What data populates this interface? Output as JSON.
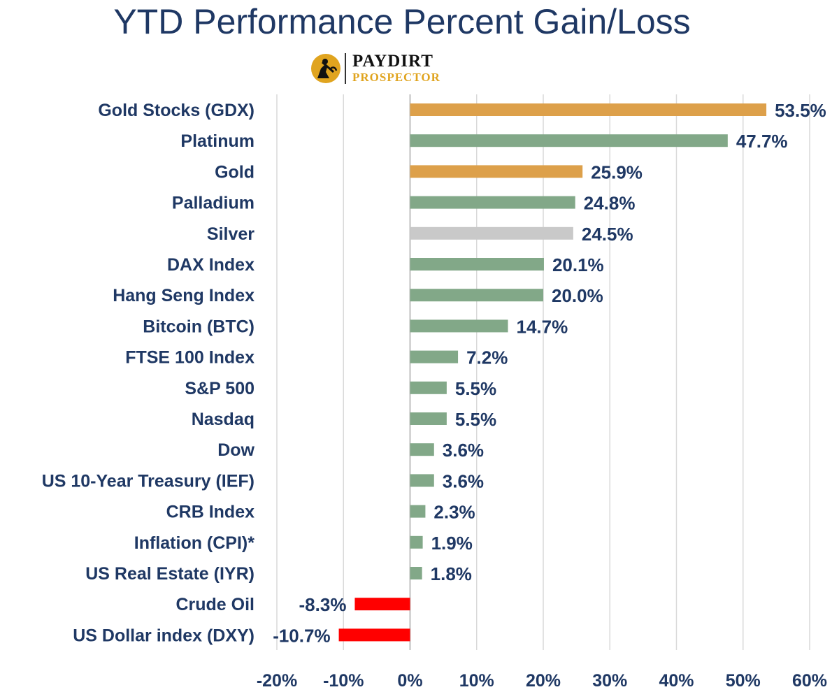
{
  "title": "YTD Performance Percent Gain/Loss",
  "logo": {
    "line1": "PAYDIRT",
    "line2": "PROSPECTOR",
    "icon": "miner-pickaxe-icon"
  },
  "colors": {
    "gold": "#DDA04A",
    "green": "#82A888",
    "silver": "#C9C9C9",
    "negative": "#FF0000",
    "text": "#1F3864",
    "grid": "#D9D9D9"
  },
  "chart_data": {
    "type": "bar",
    "orientation": "horizontal",
    "title": "YTD Performance Percent Gain/Loss",
    "xlim": [
      -20,
      60
    ],
    "x_ticks": [
      -20,
      -10,
      0,
      10,
      20,
      30,
      40,
      50,
      60
    ],
    "x_tick_labels": [
      "-20%",
      "-10%",
      "0%",
      "10%",
      "20%",
      "30%",
      "40%",
      "50%",
      "60%"
    ],
    "grid": "vertical",
    "categories": [
      "Gold Stocks (GDX)",
      "Platinum",
      "Gold",
      "Palladium",
      "Silver",
      "DAX Index",
      "Hang Seng Index",
      "Bitcoin (BTC)",
      "FTSE 100 Index",
      "S&P 500",
      "Nasdaq",
      "Dow",
      "US 10-Year Treasury (IEF)",
      "CRB Index",
      "Inflation (CPI)*",
      "US Real Estate (IYR)",
      "Crude Oil",
      "US Dollar index (DXY)"
    ],
    "values": [
      53.5,
      47.7,
      25.9,
      24.8,
      24.5,
      20.1,
      20.0,
      14.7,
      7.2,
      5.5,
      5.5,
      3.6,
      3.6,
      2.3,
      1.9,
      1.8,
      -8.3,
      -10.7
    ],
    "value_labels": [
      "53.5%",
      "47.7%",
      "25.9%",
      "24.8%",
      "24.5%",
      "20.1%",
      "20.0%",
      "14.7%",
      "7.2%",
      "5.5%",
      "5.5%",
      "3.6%",
      "3.6%",
      "2.3%",
      "1.9%",
      "1.8%",
      "-8.3%",
      "-10.7%"
    ],
    "bar_colors": [
      "gold",
      "green",
      "gold",
      "green",
      "silver",
      "green",
      "green",
      "green",
      "green",
      "green",
      "green",
      "green",
      "green",
      "green",
      "green",
      "green",
      "negative",
      "negative"
    ]
  }
}
